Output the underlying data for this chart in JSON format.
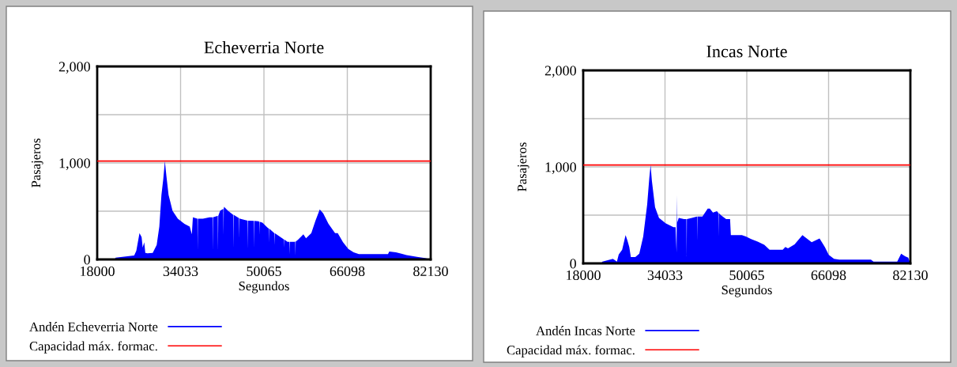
{
  "chart_data": [
    {
      "type": "area",
      "title": "Echeverria Norte",
      "xlabel": "Segundos",
      "ylabel": "Pasajeros",
      "xlim": [
        18000,
        82130
      ],
      "ylim": [
        0,
        2000
      ],
      "xticks": [
        18000,
        34033,
        50065,
        66098,
        82130
      ],
      "yticks": [
        {
          "value": 0,
          "label": "0"
        },
        {
          "value": 500,
          "label": null
        },
        {
          "value": 1000,
          "label": "1,000"
        },
        {
          "value": 1500,
          "label": null
        },
        {
          "value": 2000,
          "label": "2,000"
        }
      ],
      "grid": true,
      "legend": "bottom",
      "series": [
        {
          "name": "Andén Echeverria Norte",
          "color": "#0000ff",
          "x": [
            18000,
            21304,
            21558,
            25116,
            25523,
            26133,
            26539,
            26743,
            27048,
            27251,
            27658,
            28674,
            29437,
            29945,
            30352,
            30708,
            31012,
            31317,
            31724,
            32487,
            33503,
            34774,
            35791,
            36197,
            36400,
            37270,
            37315,
            37360,
            38332,
            39603,
            40170,
            40213,
            40260,
            41128,
            41180,
            41230,
            41280,
            41636,
            42250,
            42297,
            42340,
            42398,
            43160,
            44130,
            44177,
            44220,
            45200,
            45245,
            45290,
            45448,
            46930,
            46973,
            47020,
            48100,
            48142,
            48190,
            49006,
            49220,
            49260,
            49300,
            49769,
            50786,
            51000,
            51040,
            51080,
            52056,
            52110,
            52158,
            52200,
            53581,
            53950,
            53988,
            54030,
            54598,
            54960,
            55005,
            55050,
            55868,
            56080,
            56122,
            56170,
            56630,
            57647,
            58155,
            59172,
            59934,
            60799,
            61460,
            62476,
            63747,
            64255,
            65272,
            66289,
            67305,
            68322,
            73913,
            74167,
            75438,
            77471,
            79504,
            81029,
            82130
          ],
          "values": [
            0,
            0,
            19,
            41,
            90,
            273,
            232,
            123,
            178,
            68,
            63,
            68,
            150,
            341,
            669,
            833,
            1019,
            861,
            669,
            505,
            423,
            369,
            341,
            260,
            437,
            423,
            96,
            423,
            423,
            437,
            437,
            90,
            437,
            451,
            451,
            90,
            451,
            505,
            525,
            260,
            525,
            546,
            505,
            464,
            123,
            464,
            430,
            219,
            430,
            423,
            402,
            109,
            402,
            400,
            123,
            400,
            396,
            390,
            260,
            390,
            382,
            328,
            320,
            178,
            320,
            273,
            270,
            150,
            270,
            219,
            205,
            123,
            205,
            183,
            183,
            55,
            183,
            183,
            185,
            41,
            185,
            205,
            260,
            219,
            273,
            396,
            519,
            478,
            369,
            273,
            273,
            178,
            109,
            74,
            55,
            55,
            82,
            74,
            46,
            27,
            14,
            0
          ]
        },
        {
          "name": "Capacidad máx. formac.",
          "color": "#ff0000",
          "type": "line",
          "x": [
            18000,
            82130
          ],
          "values": [
            1020,
            1020
          ]
        }
      ]
    },
    {
      "type": "area",
      "title": "Incas Norte",
      "xlabel": "Segundos",
      "ylabel": "Pasajeros",
      "xlim": [
        18000,
        82130
      ],
      "ylim": [
        0,
        2000
      ],
      "xticks": [
        18000,
        34033,
        50065,
        66098,
        82130
      ],
      "yticks": [
        {
          "value": 0,
          "label": "0"
        },
        {
          "value": 500,
          "label": null
        },
        {
          "value": 1000,
          "label": "1,000"
        },
        {
          "value": 1500,
          "label": null
        },
        {
          "value": 2000,
          "label": "2,000"
        }
      ],
      "grid": true,
      "legend": "bottom",
      "series": [
        {
          "name": "Andén Incas Norte",
          "color": "#0000ff",
          "x": [
            18000,
            21508,
            21766,
            23830,
            24604,
            24965,
            25635,
            26306,
            26667,
            27028,
            27338,
            28215,
            28989,
            29763,
            30536,
            30949,
            31207,
            31465,
            32084,
            32858,
            34147,
            35695,
            36108,
            36300,
            36366,
            36420,
            36727,
            37759,
            38230,
            38275,
            38320,
            39307,
            40300,
            40339,
            40380,
            41371,
            42403,
            42816,
            43435,
            44209,
            44530,
            44570,
            44610,
            44983,
            46015,
            46789,
            46943,
            49110,
            49884,
            50915,
            52205,
            53495,
            54527,
            57106,
            57622,
            58138,
            59428,
            60976,
            62781,
            64329,
            65361,
            66134,
            67166,
            68198,
            74387,
            74903,
            79546,
            80320,
            81094,
            81713,
            82130
          ],
          "values": [
            0,
            0,
            19,
            47,
            19,
            93,
            142,
            293,
            238,
            170,
            66,
            66,
            101,
            279,
            608,
            882,
            1019,
            855,
            581,
            471,
            416,
            375,
            375,
            115,
            704,
            424,
            471,
            458,
            460,
            74,
            460,
            471,
            485,
            238,
            485,
            485,
            567,
            567,
            526,
            540,
            520,
            279,
            520,
            499,
            458,
            458,
            293,
            293,
            279,
            252,
            225,
            192,
            142,
            142,
            170,
            156,
            197,
            293,
            219,
            258,
            170,
            88,
            47,
            38,
            38,
            19,
            19,
            101,
            74,
            60,
            0
          ]
        },
        {
          "name": "Capacidad máx. formac.",
          "color": "#ff0000",
          "type": "line",
          "x": [
            18000,
            82130
          ],
          "values": [
            1020,
            1020
          ]
        }
      ]
    }
  ]
}
